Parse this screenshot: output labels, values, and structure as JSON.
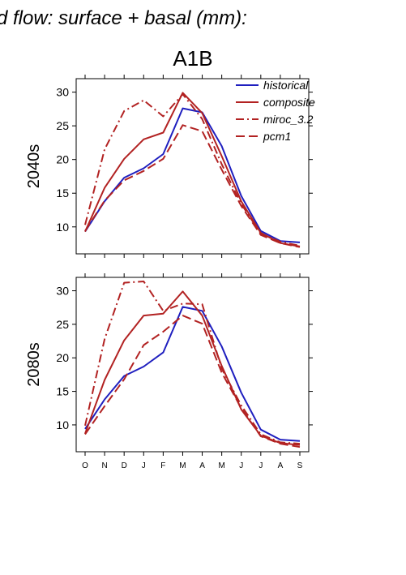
{
  "page": {
    "title": "d flow: surface + basal (mm):",
    "scenario": "A1B"
  },
  "chart_data": [
    {
      "type": "line",
      "panel_label": "2040s",
      "categories": [
        "O",
        "N",
        "D",
        "J",
        "F",
        "M",
        "A",
        "M",
        "J",
        "J",
        "A",
        "S"
      ],
      "ylim": [
        6,
        32
      ],
      "yticks": [
        10,
        15,
        20,
        25,
        30
      ],
      "legend": {
        "placement": "top-right"
      },
      "series": [
        {
          "name": "historical",
          "color": "#1f1fbf",
          "dash": "solid",
          "values": [
            9.3,
            13.8,
            17.3,
            18.7,
            20.8,
            27.6,
            27.0,
            22.0,
            14.6,
            9.4,
            7.9,
            7.7
          ]
        },
        {
          "name": "composite",
          "color": "#b22222",
          "dash": "solid",
          "values": [
            9.3,
            15.8,
            20.1,
            23.0,
            24.0,
            29.9,
            26.9,
            20.5,
            13.8,
            9.1,
            7.6,
            7.1
          ]
        },
        {
          "name": "miroc_3.2",
          "color": "#b22222",
          "dash": "dashdot",
          "values": [
            10.3,
            21.5,
            27.2,
            28.8,
            26.4,
            29.7,
            26.0,
            19.3,
            13.4,
            9.0,
            7.8,
            7.2
          ]
        },
        {
          "name": "pcm1",
          "color": "#b22222",
          "dash": "dash",
          "values": [
            9.4,
            13.9,
            16.9,
            18.3,
            20.1,
            25.1,
            24.2,
            18.5,
            13.1,
            8.8,
            7.6,
            7.0
          ]
        }
      ]
    },
    {
      "type": "line",
      "panel_label": "2080s",
      "categories": [
        "O",
        "N",
        "D",
        "J",
        "F",
        "M",
        "A",
        "M",
        "J",
        "J",
        "A",
        "S"
      ],
      "ylim": [
        6,
        32
      ],
      "yticks": [
        10,
        15,
        20,
        25,
        30
      ],
      "xtick_labels_shown": true,
      "series": [
        {
          "name": "historical",
          "color": "#1f1fbf",
          "dash": "solid",
          "values": [
            9.4,
            13.8,
            17.3,
            18.7,
            20.8,
            27.6,
            27.0,
            21.7,
            14.8,
            9.3,
            7.8,
            7.6
          ]
        },
        {
          "name": "composite",
          "color": "#b22222",
          "dash": "solid",
          "values": [
            8.7,
            16.7,
            22.6,
            26.3,
            26.6,
            29.9,
            26.3,
            18.8,
            12.3,
            8.4,
            7.3,
            7.0
          ]
        },
        {
          "name": "miroc_3.2",
          "color": "#b22222",
          "dash": "dashdot",
          "values": [
            9.9,
            22.8,
            31.2,
            31.4,
            27.0,
            28.1,
            28.0,
            18.4,
            12.9,
            8.6,
            7.4,
            7.2
          ]
        },
        {
          "name": "pcm1",
          "color": "#b22222",
          "dash": "dash",
          "values": [
            8.6,
            12.8,
            16.8,
            21.9,
            23.9,
            26.3,
            25.1,
            17.8,
            12.5,
            8.3,
            7.2,
            6.7
          ]
        }
      ]
    }
  ]
}
